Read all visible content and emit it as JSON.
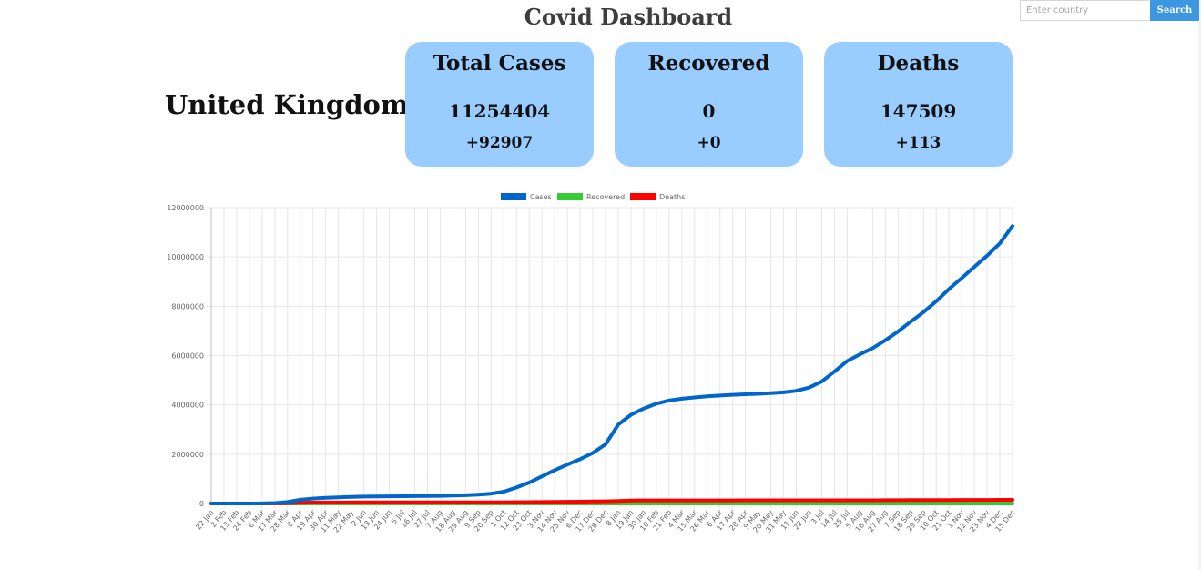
{
  "header": {
    "title": "Covid Dashboard"
  },
  "search": {
    "placeholder": "Enter country",
    "value": "",
    "button_label": "Search",
    "button_color": "#3d96e0"
  },
  "country": "United Kingdom",
  "cards": [
    {
      "title": "Total Cases",
      "value": "11254404",
      "delta": "+92907"
    },
    {
      "title": "Recovered",
      "value": "0",
      "delta": "+0"
    },
    {
      "title": "Deaths",
      "value": "147509",
      "delta": "+113"
    }
  ],
  "card_color": "#99ccff",
  "chart_data": {
    "type": "line",
    "title": "",
    "xlabel": "",
    "ylabel": "",
    "ylim": [
      0,
      12000000
    ],
    "yticks": [
      0,
      2000000,
      4000000,
      6000000,
      8000000,
      10000000,
      12000000
    ],
    "ytick_labels": [
      "0",
      "2000000",
      "4000000",
      "6000000",
      "8000000",
      "10000000",
      "12000000"
    ],
    "grid": true,
    "legend_position": "top-center",
    "x": [
      "22 Jan",
      "2 Feb",
      "13 Feb",
      "24 Feb",
      "6 Mar",
      "17 Mar",
      "28 Mar",
      "8 Apr",
      "19 Apr",
      "30 Apr",
      "11 May",
      "22 May",
      "2 Jun",
      "13 Jun",
      "24 Jun",
      "5 Jul",
      "16 Jul",
      "27 Jul",
      "7 Aug",
      "18 Aug",
      "29 Aug",
      "9 Sep",
      "20 Sep",
      "1 Oct",
      "12 Oct",
      "23 Oct",
      "3 Nov",
      "14 Nov",
      "25 Nov",
      "6 Dec",
      "17 Dec",
      "28 Dec",
      "8 Jan",
      "19 Jan",
      "30 Jan",
      "10 Feb",
      "21 Feb",
      "4 Mar",
      "15 Mar",
      "26 Mar",
      "6 Apr",
      "17 Apr",
      "28 Apr",
      "9 May",
      "20 May",
      "31 May",
      "11 Jun",
      "22 Jun",
      "3 Jul",
      "14 Jul",
      "25 Jul",
      "5 Aug",
      "16 Aug",
      "27 Aug",
      "7 Sep",
      "18 Sep",
      "29 Sep",
      "10 Oct",
      "21 Oct",
      "1 Nov",
      "12 Nov",
      "23 Nov",
      "4 Dec",
      "15 Dec"
    ],
    "series": [
      {
        "name": "Cases",
        "color": "#0066cc",
        "values": [
          0,
          0,
          0,
          0,
          5000,
          20000,
          60000,
          150000,
          200000,
          230000,
          250000,
          270000,
          280000,
          285000,
          290000,
          295000,
          300000,
          305000,
          310000,
          320000,
          335000,
          360000,
          400000,
          480000,
          650000,
          850000,
          1100000,
          1350000,
          1580000,
          1800000,
          2050000,
          2400000,
          3200000,
          3600000,
          3850000,
          4050000,
          4180000,
          4250000,
          4300000,
          4350000,
          4380000,
          4410000,
          4430000,
          4450000,
          4480000,
          4510000,
          4570000,
          4700000,
          4950000,
          5350000,
          5780000,
          6050000,
          6300000,
          6620000,
          6980000,
          7380000,
          7760000,
          8200000,
          8700000,
          9140000,
          9600000,
          10050000,
          10550000,
          11254404
        ]
      },
      {
        "name": "Recovered",
        "color": "#33cc33",
        "values": [
          0,
          0,
          0,
          0,
          0,
          0,
          0,
          0,
          0,
          0,
          0,
          0,
          0,
          0,
          0,
          0,
          0,
          0,
          0,
          0,
          0,
          0,
          0,
          0,
          0,
          0,
          0,
          0,
          0,
          0,
          0,
          0,
          0,
          0,
          0,
          0,
          0,
          0,
          0,
          0,
          0,
          0,
          0,
          0,
          0,
          0,
          0,
          0,
          0,
          0,
          0,
          0,
          0,
          0,
          0,
          0,
          0,
          0,
          0,
          0,
          0,
          0,
          0,
          0
        ]
      },
      {
        "name": "Deaths",
        "color": "#ff0000",
        "values": [
          0,
          0,
          0,
          0,
          0,
          2000,
          15000,
          30000,
          37000,
          40000,
          42000,
          43000,
          43500,
          44000,
          44200,
          44500,
          44800,
          45000,
          45200,
          45400,
          45600,
          45900,
          46500,
          48000,
          51000,
          55000,
          60000,
          65000,
          70000,
          75000,
          80000,
          90000,
          105000,
          120000,
          125000,
          126000,
          126500,
          126800,
          127000,
          127100,
          127200,
          127300,
          127400,
          127500,
          127600,
          127700,
          127800,
          128000,
          128300,
          128700,
          129300,
          130000,
          131000,
          132000,
          133500,
          135000,
          137000,
          139000,
          141000,
          142500,
          144000,
          145500,
          146800,
          147509
        ]
      }
    ]
  }
}
